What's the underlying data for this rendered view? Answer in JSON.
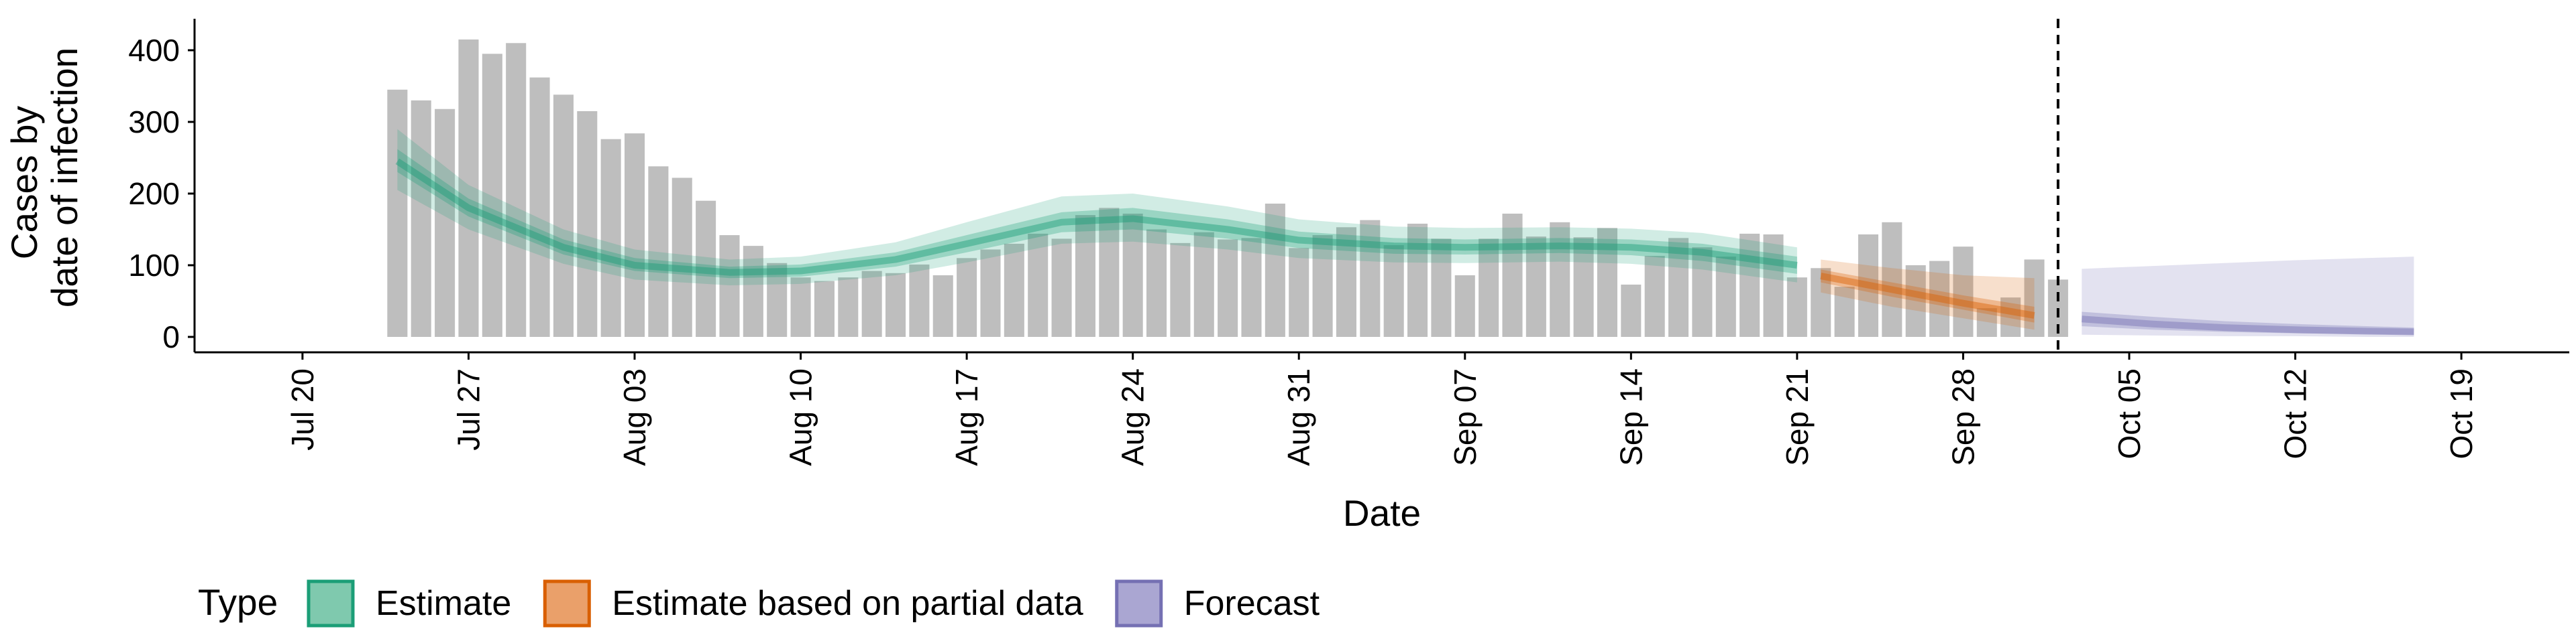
{
  "chart_data": {
    "type": "bar",
    "xlabel": "Date",
    "ylabel_lines": [
      "Cases by",
      "date of infection"
    ],
    "ylim": [
      0,
      430
    ],
    "yticks": [
      0,
      100,
      200,
      300,
      400
    ],
    "x_range": [
      "2020-07-20",
      "2020-10-19"
    ],
    "xticks": [
      {
        "date": "2020-07-20",
        "label": "Jul 20"
      },
      {
        "date": "2020-07-27",
        "label": "Jul 27"
      },
      {
        "date": "2020-08-03",
        "label": "Aug 03"
      },
      {
        "date": "2020-08-10",
        "label": "Aug 10"
      },
      {
        "date": "2020-08-17",
        "label": "Aug 17"
      },
      {
        "date": "2020-08-24",
        "label": "Aug 24"
      },
      {
        "date": "2020-08-31",
        "label": "Aug 31"
      },
      {
        "date": "2020-09-07",
        "label": "Sep 07"
      },
      {
        "date": "2020-09-14",
        "label": "Sep 14"
      },
      {
        "date": "2020-09-21",
        "label": "Sep 21"
      },
      {
        "date": "2020-09-28",
        "label": "Sep 28"
      },
      {
        "date": "2020-10-05",
        "label": "Oct 05"
      },
      {
        "date": "2020-10-12",
        "label": "Oct 12"
      },
      {
        "date": "2020-10-19",
        "label": "Oct 19"
      }
    ],
    "bar_color": "#bebebe",
    "bars": {
      "start_date": "2020-07-24",
      "values": [
        345,
        330,
        318,
        415,
        395,
        410,
        362,
        338,
        315,
        276,
        284,
        238,
        222,
        190,
        142,
        127,
        103,
        83,
        78,
        83,
        92,
        89,
        101,
        86,
        110,
        122,
        130,
        144,
        137,
        170,
        180,
        172,
        150,
        131,
        146,
        136,
        138,
        186,
        124,
        142,
        153,
        163,
        128,
        158,
        137,
        86,
        137,
        172,
        140,
        160,
        139,
        152,
        73,
        113,
        138,
        125,
        112,
        144,
        143,
        83,
        96,
        70,
        143,
        160,
        100,
        106,
        126,
        40,
        55,
        108,
        80
      ]
    },
    "vline_date": "2020-10-02",
    "series": [
      {
        "name": "Estimate",
        "color": "#1b9e77",
        "dates": [
          "2020-07-24",
          "2020-07-27",
          "2020-07-31",
          "2020-08-03",
          "2020-08-07",
          "2020-08-10",
          "2020-08-14",
          "2020-08-17",
          "2020-08-21",
          "2020-08-24",
          "2020-08-28",
          "2020-08-31",
          "2020-09-04",
          "2020-09-07",
          "2020-09-11",
          "2020-09-14",
          "2020-09-17",
          "2020-09-21"
        ],
        "median": [
          245,
          180,
          125,
          100,
          90,
          92,
          108,
          130,
          160,
          165,
          150,
          135,
          127,
          125,
          127,
          125,
          118,
          100
        ],
        "inner_lower": [
          230,
          168,
          115,
          92,
          82,
          84,
          98,
          118,
          146,
          150,
          137,
          124,
          116,
          115,
          117,
          114,
          106,
          88
        ],
        "inner_upper": [
          262,
          193,
          136,
          110,
          98,
          101,
          118,
          142,
          174,
          180,
          164,
          147,
          138,
          136,
          138,
          136,
          130,
          112
        ],
        "outer_lower": [
          205,
          150,
          102,
          80,
          72,
          74,
          86,
          104,
          130,
          133,
          122,
          110,
          104,
          103,
          105,
          102,
          94,
          76
        ],
        "outer_upper": [
          290,
          212,
          150,
          122,
          108,
          112,
          132,
          160,
          196,
          200,
          182,
          164,
          154,
          152,
          153,
          151,
          145,
          125
        ]
      },
      {
        "name": "Estimate based on partial data",
        "color": "#d95f02",
        "dates": [
          "2020-09-22",
          "2020-09-25",
          "2020-09-28",
          "2020-10-01"
        ],
        "median": [
          85,
          66,
          47,
          30
        ],
        "inner_lower": [
          76,
          56,
          38,
          20
        ],
        "inner_upper": [
          94,
          76,
          58,
          42
        ],
        "outer_lower": [
          62,
          42,
          26,
          10
        ],
        "outer_upper": [
          108,
          96,
          86,
          82
        ]
      },
      {
        "name": "Forecast",
        "color": "#7570b3",
        "dates": [
          "2020-10-03",
          "2020-10-06",
          "2020-10-09",
          "2020-10-12",
          "2020-10-15",
          "2020-10-17"
        ],
        "median": [
          25,
          18,
          13,
          10,
          8,
          7
        ],
        "inner_lower": [
          15,
          10,
          7,
          5,
          4,
          3
        ],
        "inner_upper": [
          35,
          28,
          22,
          18,
          15,
          13
        ],
        "outer_lower": [
          3,
          2,
          1,
          1,
          0,
          0
        ],
        "outer_upper": [
          95,
          99,
          103,
          107,
          110,
          112
        ]
      }
    ],
    "legend": {
      "title": "Type",
      "placement": "bottom",
      "entries": [
        {
          "label": "Estimate",
          "fill": "#7fc9ae",
          "stroke": "#1b9e77"
        },
        {
          "label": "Estimate based on partial data",
          "fill": "#eaa06a",
          "stroke": "#d95f02"
        },
        {
          "label": "Forecast",
          "fill": "#aaa6d2",
          "stroke": "#7570b3"
        }
      ]
    }
  }
}
